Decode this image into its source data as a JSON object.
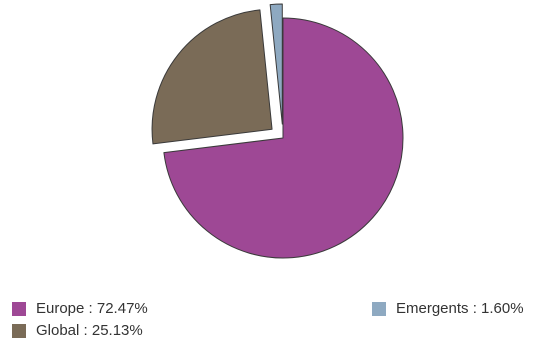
{
  "chart_data": {
    "type": "pie",
    "title": "",
    "series": [
      {
        "name": "Europe",
        "value": 72.47,
        "label": "Europe : 72.47%",
        "color": "#9e4895"
      },
      {
        "name": "Global",
        "value": 25.13,
        "label": "Global : 25.13%",
        "color": "#7a6b57"
      },
      {
        "name": "Emergents",
        "value": 1.6,
        "label": "Emergents : 1.60%",
        "color": "#8ea9c1"
      }
    ],
    "start_angle_deg": 0,
    "direction": "clockwise",
    "exploded": [
      "Global",
      "Emergents"
    ],
    "legend_position": "bottom"
  }
}
